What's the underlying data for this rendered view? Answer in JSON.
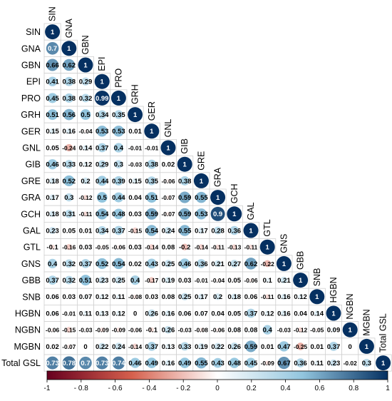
{
  "chart_data": {
    "type": "heatmap",
    "variables": [
      "SIN",
      "GNA",
      "GBN",
      "EPI",
      "PRO",
      "GRH",
      "GER",
      "GNL",
      "GIB",
      "GRE",
      "GRA",
      "GCH",
      "GAL",
      "GTL",
      "GNS",
      "GBB",
      "SNB",
      "HGBN",
      "NGBN",
      "MGBN",
      "Total GSL"
    ],
    "matrix_lower": [
      [
        1
      ],
      [
        0.7,
        1
      ],
      [
        0.66,
        0.62,
        1
      ],
      [
        0.41,
        0.38,
        0.29,
        1
      ],
      [
        0.45,
        0.38,
        0.32,
        0.99,
        1
      ],
      [
        0.51,
        0.56,
        0.5,
        0.34,
        0.35,
        1
      ],
      [
        0.15,
        0.16,
        -0.04,
        0.53,
        0.53,
        0.01,
        1
      ],
      [
        0.05,
        -0.24,
        0.14,
        0.37,
        0.4,
        -0.01,
        -0.01,
        1
      ],
      [
        0.46,
        0.33,
        0.12,
        0.29,
        0.3,
        -0.03,
        0.38,
        0.02,
        1
      ],
      [
        0.18,
        0.52,
        0.2,
        0.44,
        0.39,
        0.15,
        0.35,
        -0.06,
        0.38,
        1
      ],
      [
        0.17,
        0.3,
        -0.12,
        0.5,
        0.44,
        0.04,
        0.51,
        -0.07,
        0.59,
        0.55,
        1
      ],
      [
        0.18,
        0.31,
        -0.11,
        0.54,
        0.48,
        0.03,
        0.59,
        -0.07,
        0.59,
        0.53,
        0.9,
        1
      ],
      [
        0.23,
        0.05,
        0.01,
        0.34,
        0.37,
        -0.15,
        0.54,
        0.24,
        0.55,
        0.17,
        0.28,
        0.36,
        1
      ],
      [
        -0.1,
        -0.16,
        0.03,
        -0.05,
        -0.06,
        0.03,
        -0.14,
        0.08,
        -0.2,
        -0.14,
        -0.11,
        -0.13,
        -0.11,
        1
      ],
      [
        0.4,
        0.32,
        0.37,
        0.52,
        0.54,
        0.02,
        0.43,
        0.25,
        0.46,
        0.36,
        0.21,
        0.27,
        0.62,
        -0.22,
        1
      ],
      [
        0.37,
        0.32,
        0.51,
        0.23,
        0.25,
        0.4,
        -0.17,
        0.19,
        0.03,
        -0.01,
        -0.04,
        0.05,
        -0.06,
        0.1,
        0.21,
        1
      ],
      [
        0.06,
        0.03,
        0.07,
        0.12,
        0.11,
        -0.08,
        0.03,
        0.08,
        0.25,
        0.17,
        0.2,
        0.18,
        0.06,
        -0.11,
        0.16,
        0.12,
        1
      ],
      [
        0.06,
        -0.01,
        0.11,
        0.13,
        0.12,
        0,
        0.26,
        0.16,
        0.06,
        0.07,
        0.04,
        0.05,
        0.37,
        0.12,
        0.16,
        0.04,
        0.14,
        1
      ],
      [
        -0.06,
        -0.15,
        -0.03,
        -0.09,
        -0.09,
        -0.06,
        -0.1,
        0.26,
        -0.03,
        -0.08,
        -0.06,
        0.08,
        0.08,
        0.4,
        -0.03,
        -0.12,
        -0.05,
        0.09,
        1
      ],
      [
        0.02,
        -0.07,
        0,
        0.22,
        0.24,
        -0.14,
        0.37,
        0.13,
        0.33,
        0.19,
        0.22,
        0.26,
        0.59,
        0.01,
        0.47,
        -0.25,
        0.01,
        0.37,
        0,
        1
      ],
      [
        0.73,
        0.78,
        0.7,
        0.73,
        0.74,
        0.46,
        0.49,
        0.16,
        0.49,
        0.55,
        0.43,
        0.48,
        0.45,
        -0.09,
        0.67,
        0.36,
        0.11,
        0.23,
        -0.02,
        0.3,
        1
      ]
    ],
    "colorbar": {
      "range": [
        -1,
        1
      ],
      "ticks": [
        "-1",
        "- 0.8",
        "- 0.6",
        "- 0.4",
        "- 0.2",
        "0",
        "0.2",
        "0.4",
        "0.6",
        "0.8",
        "1"
      ],
      "colors": {
        "negative": "#67001f",
        "zero": "#ffffff",
        "positive": "#053061"
      }
    },
    "title": ""
  }
}
